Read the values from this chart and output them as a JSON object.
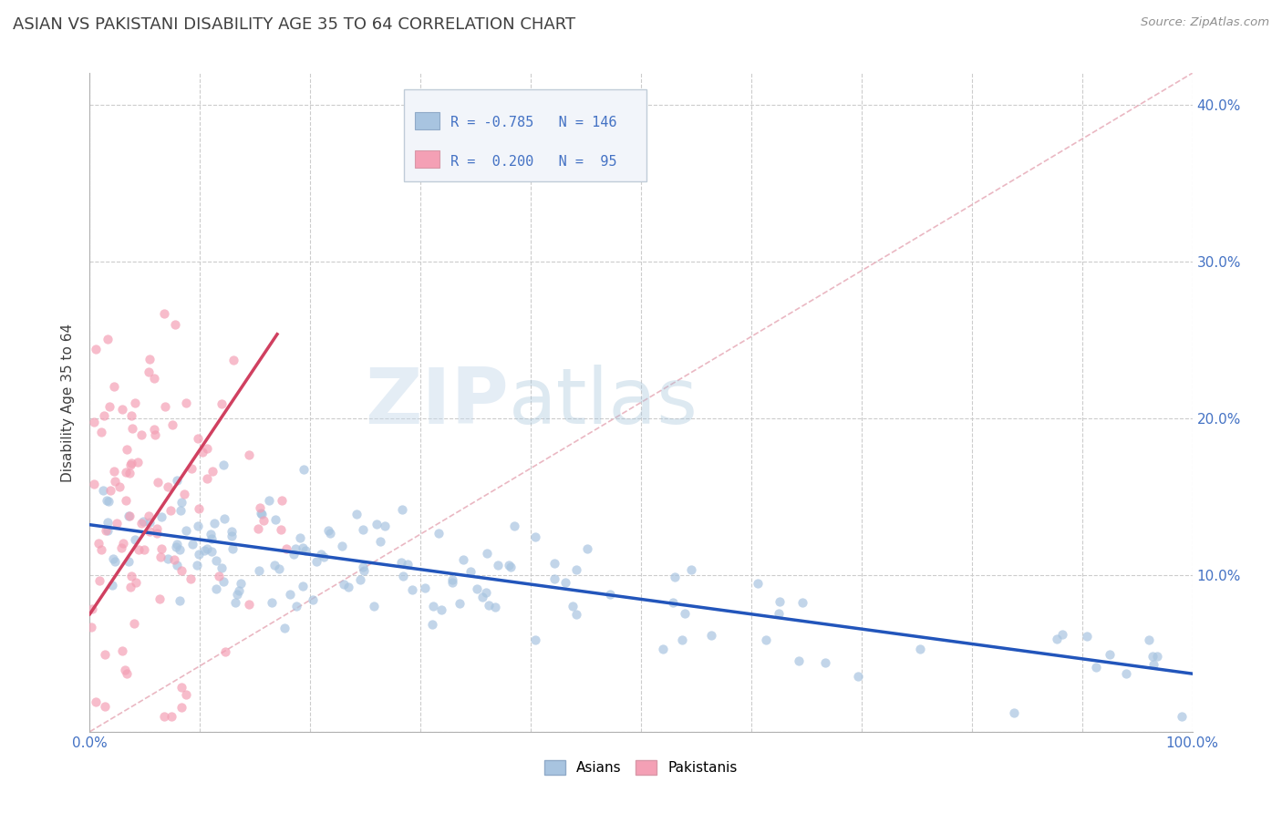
{
  "title": "ASIAN VS PAKISTANI DISABILITY AGE 35 TO 64 CORRELATION CHART",
  "source_text": "Source: ZipAtlas.com",
  "ylabel": "Disability Age 35 to 64",
  "xlim": [
    0.0,
    1.0
  ],
  "ylim": [
    0.0,
    0.42
  ],
  "x_ticks": [
    0.0,
    0.1,
    0.2,
    0.3,
    0.4,
    0.5,
    0.6,
    0.7,
    0.8,
    0.9,
    1.0
  ],
  "x_tick_labels": [
    "0.0%",
    "",
    "",
    "",
    "",
    "",
    "",
    "",
    "",
    "",
    "100.0%"
  ],
  "y_ticks": [
    0.0,
    0.1,
    0.2,
    0.3,
    0.4
  ],
  "y_tick_labels": [
    "",
    "10.0%",
    "20.0%",
    "30.0%",
    "40.0%"
  ],
  "asian_color": "#a8c4e0",
  "pakistani_color": "#f4a0b5",
  "asian_line_color": "#2255bb",
  "pakistani_line_color": "#d04060",
  "diag_line_color": "#e8b0bc",
  "background_color": "#ffffff",
  "grid_color": "#cccccc",
  "title_color": "#404040",
  "watermark_zip_color": "#c8d8e8",
  "watermark_atlas_color": "#a8c8d8",
  "legend_R_asian": "-0.785",
  "legend_N_asian": "146",
  "legend_R_pakistani": "0.200",
  "legend_N_pakistani": "95",
  "asian_intercept": 0.132,
  "asian_slope": -0.095,
  "pakistani_intercept": 0.075,
  "pakistani_slope": 1.05,
  "pakistani_line_xmax": 0.17
}
